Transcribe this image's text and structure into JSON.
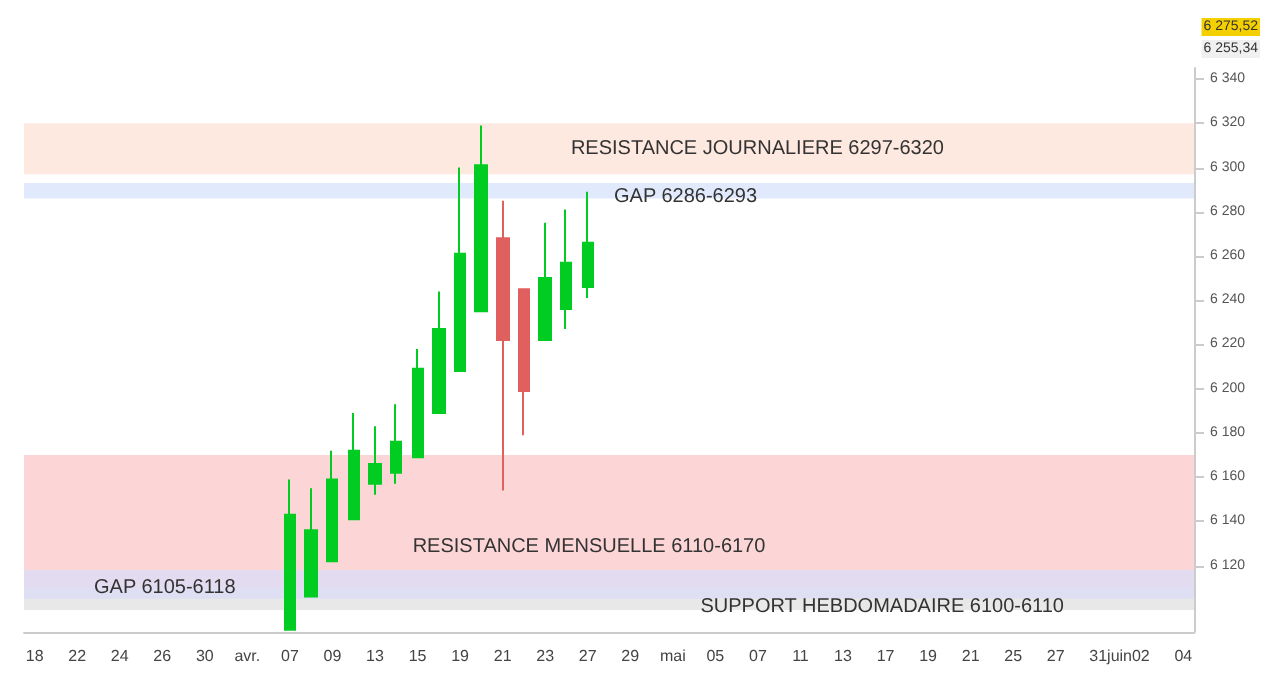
{
  "chart_data": {
    "type": "candlestick",
    "categories": [
      "18",
      null,
      "22",
      null,
      "24",
      null,
      "26",
      null,
      "30",
      null,
      "avr.",
      null,
      "07",
      null,
      "09",
      null,
      "13",
      null,
      "15",
      null,
      "19",
      null,
      "21",
      null,
      "23",
      null,
      "27",
      null,
      "29",
      null,
      "mai",
      null,
      "05",
      null,
      "07",
      null,
      "11",
      null,
      "13",
      null,
      "17",
      null,
      "19",
      null,
      "21",
      null,
      "25",
      null,
      "27",
      null,
      "31",
      "juin",
      "02",
      null,
      "04"
    ],
    "ohlc": [
      null,
      null,
      null,
      null,
      null,
      null,
      null,
      null,
      null,
      null,
      null,
      null,
      [
        6091,
        6159,
        6091,
        6143
      ],
      [
        6106,
        6155,
        6106,
        6136
      ],
      [
        6122,
        6172,
        6122,
        6159
      ],
      [
        6141,
        6189,
        6141,
        6172
      ],
      [
        6157,
        6183,
        6152,
        6166
      ],
      [
        6162,
        6193,
        6157,
        6176
      ],
      [
        6169,
        6218,
        6169,
        6209
      ],
      [
        6189,
        6244,
        6189,
        6227
      ],
      [
        6208,
        6300,
        6208,
        6261
      ],
      [
        6235,
        6319,
        6235,
        6301
      ],
      [
        6268,
        6285,
        6154,
        6222
      ],
      [
        6245,
        6245,
        6179,
        6199
      ],
      [
        6222,
        6275,
        6222,
        6250
      ],
      [
        6236,
        6281,
        6227,
        6257
      ],
      [
        6246,
        6289,
        6241,
        6266
      ],
      null,
      null,
      null,
      null,
      null,
      null,
      null,
      null,
      null,
      null,
      null,
      null,
      null,
      null,
      null,
      null,
      null,
      null,
      null,
      null,
      null,
      null,
      null,
      null,
      null,
      null,
      null,
      null
    ],
    "colors": [
      null,
      null,
      null,
      null,
      null,
      null,
      null,
      null,
      null,
      null,
      null,
      null,
      "#00cc22",
      "#00cc22",
      "#00cc22",
      "#00cc22",
      "#00cc22",
      "#00cc22",
      "#00cc22",
      "#00cc22",
      "#00cc22",
      "#00cc22",
      "#e06060",
      "#e06060",
      "#00cc22",
      "#00cc22",
      "#00cc22",
      null,
      null,
      null,
      null,
      null,
      null,
      null,
      null,
      null,
      null,
      null,
      null,
      null,
      null,
      null,
      null,
      null,
      null,
      null,
      null,
      null,
      null,
      null,
      null,
      null,
      null,
      null,
      null
    ],
    "ylim": [
      6090,
      6345
    ],
    "yticks": [
      {
        "value": 6120,
        "label": "6 120"
      },
      {
        "value": 6140,
        "label": "6 140"
      },
      {
        "value": 6160,
        "label": "6 160"
      },
      {
        "value": 6180,
        "label": "6 180"
      },
      {
        "value": 6200,
        "label": "6 200"
      },
      {
        "value": 6220,
        "label": "6 220"
      },
      {
        "value": 6240,
        "label": "6 240"
      },
      {
        "value": 6260,
        "label": "6 260"
      },
      {
        "value": 6280,
        "label": "6 280"
      },
      {
        "value": 6300,
        "label": "6 300"
      },
      {
        "value": 6320,
        "label": "6 320"
      },
      {
        "value": 6340,
        "label": "6 340"
      }
    ],
    "bands": [
      {
        "axis": "y",
        "from": 6297,
        "to": 6320,
        "label": "RESISTANCE JOURNALIERE 6297-6320",
        "color": "#fde9df"
      },
      {
        "axis": "y",
        "from": 6286,
        "to": 6293,
        "label": "GAP 6286-6293",
        "color": "#e1eafc"
      },
      {
        "axis": "y",
        "from": 6110,
        "to": 6170,
        "label": "RESISTANCE MENSUELLE 6110-6170",
        "color": "#fcd6d6"
      },
      {
        "axis": "y",
        "from": 6100,
        "to": 6110,
        "label": "SUPPORT HEBDOMADAIRE 6100-6110",
        "color": "#e8e8e8"
      },
      {
        "axis": "y",
        "from": 6105,
        "to": 6118,
        "label": "GAP 6105-6118",
        "color": "#dcdcf5"
      }
    ],
    "annotations": [
      "6 275,52",
      "6 255,34"
    ],
    "grid": false
  }
}
